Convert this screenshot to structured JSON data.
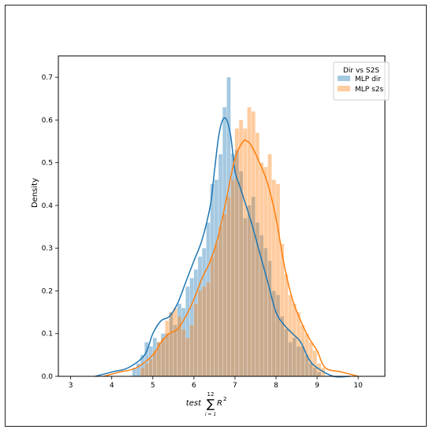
{
  "chart_data": {
    "type": "histogram",
    "xlabel_prefix": "test",
    "xlabel_sum_upper": "12",
    "xlabel_sum_lower": "i = 1",
    "xlabel_term": "R",
    "xlabel_power": "2",
    "ylabel": "Density",
    "xlim": [
      2.7,
      10.65
    ],
    "ylim": [
      0,
      0.75
    ],
    "xticks": [
      3,
      4,
      5,
      6,
      7,
      8,
      9,
      10
    ],
    "yticks": [
      0.0,
      0.1,
      0.2,
      0.3,
      0.4,
      0.5,
      0.6,
      0.7
    ],
    "grid": false,
    "legend": {
      "title": "Dir vs S2S",
      "position": "top-right"
    },
    "bin_width": 0.1,
    "series": [
      {
        "name": "MLP dir",
        "color": "#1f77b4",
        "hist_x": [
          4.5,
          4.6,
          4.7,
          4.8,
          4.9,
          5.0,
          5.1,
          5.2,
          5.3,
          5.4,
          5.5,
          5.6,
          5.7,
          5.8,
          5.9,
          6.0,
          6.1,
          6.2,
          6.3,
          6.4,
          6.5,
          6.6,
          6.7,
          6.8,
          6.9,
          7.0,
          7.1,
          7.2,
          7.3,
          7.4,
          7.5,
          7.6,
          7.7,
          7.8,
          7.9,
          8.0,
          8.1,
          8.2,
          8.3,
          8.4,
          8.5,
          8.6,
          8.7,
          8.8,
          8.9,
          9.0
        ],
        "hist_y": [
          0.02,
          0.03,
          0.05,
          0.08,
          0.07,
          0.09,
          0.08,
          0.1,
          0.1,
          0.15,
          0.12,
          0.17,
          0.16,
          0.21,
          0.23,
          0.25,
          0.28,
          0.3,
          0.36,
          0.45,
          0.46,
          0.52,
          0.63,
          0.7,
          0.52,
          0.53,
          0.48,
          0.37,
          0.4,
          0.42,
          0.36,
          0.33,
          0.3,
          0.27,
          0.2,
          0.19,
          0.14,
          0.11,
          0.08,
          0.09,
          0.07,
          0.07,
          0.05,
          0.03,
          0.02,
          0.01
        ],
        "kde_x": [
          3.6,
          4.0,
          4.4,
          4.8,
          5.0,
          5.2,
          5.4,
          5.6,
          5.8,
          6.0,
          6.2,
          6.4,
          6.5,
          6.6,
          6.7,
          6.8,
          6.9,
          7.0,
          7.1,
          7.2,
          7.4,
          7.6,
          7.8,
          8.0,
          8.2,
          8.4,
          8.6,
          8.8,
          9.0,
          9.4,
          9.8
        ],
        "kde_y": [
          0.0,
          0.01,
          0.02,
          0.05,
          0.1,
          0.13,
          0.14,
          0.17,
          0.22,
          0.27,
          0.32,
          0.4,
          0.48,
          0.56,
          0.6,
          0.6,
          0.56,
          0.48,
          0.45,
          0.42,
          0.36,
          0.29,
          0.22,
          0.15,
          0.12,
          0.1,
          0.08,
          0.04,
          0.02,
          0.0,
          0.0
        ]
      },
      {
        "name": "MLP s2s",
        "color": "#ff7f0e",
        "hist_x": [
          4.7,
          4.8,
          4.9,
          5.0,
          5.1,
          5.2,
          5.3,
          5.4,
          5.5,
          5.6,
          5.7,
          5.8,
          5.9,
          6.0,
          6.1,
          6.2,
          6.3,
          6.4,
          6.5,
          6.6,
          6.7,
          6.8,
          6.9,
          7.0,
          7.1,
          7.2,
          7.3,
          7.4,
          7.5,
          7.6,
          7.7,
          7.8,
          7.9,
          8.0,
          8.1,
          8.2,
          8.3,
          8.4,
          8.5,
          8.6,
          8.7,
          8.8,
          8.9,
          9.0,
          9.1
        ],
        "hist_y": [
          0.02,
          0.03,
          0.04,
          0.06,
          0.08,
          0.09,
          0.13,
          0.15,
          0.16,
          0.14,
          0.11,
          0.09,
          0.12,
          0.17,
          0.2,
          0.21,
          0.22,
          0.28,
          0.31,
          0.35,
          0.38,
          0.42,
          0.46,
          0.58,
          0.6,
          0.58,
          0.63,
          0.62,
          0.57,
          0.5,
          0.49,
          0.52,
          0.46,
          0.45,
          0.31,
          0.24,
          0.19,
          0.17,
          0.15,
          0.12,
          0.1,
          0.08,
          0.06,
          0.03,
          0.02
        ],
        "kde_x": [
          3.8,
          4.2,
          4.6,
          5.0,
          5.2,
          5.4,
          5.6,
          5.8,
          6.0,
          6.2,
          6.4,
          6.6,
          6.8,
          7.0,
          7.2,
          7.3,
          7.4,
          7.6,
          7.8,
          8.0,
          8.2,
          8.4,
          8.6,
          8.8,
          9.0,
          9.2,
          9.6,
          10.0
        ],
        "kde_y": [
          0.0,
          0.01,
          0.02,
          0.05,
          0.08,
          0.1,
          0.11,
          0.14,
          0.18,
          0.23,
          0.27,
          0.33,
          0.42,
          0.51,
          0.55,
          0.55,
          0.54,
          0.5,
          0.45,
          0.37,
          0.26,
          0.18,
          0.13,
          0.09,
          0.06,
          0.02,
          0.01,
          0.0
        ]
      }
    ]
  }
}
